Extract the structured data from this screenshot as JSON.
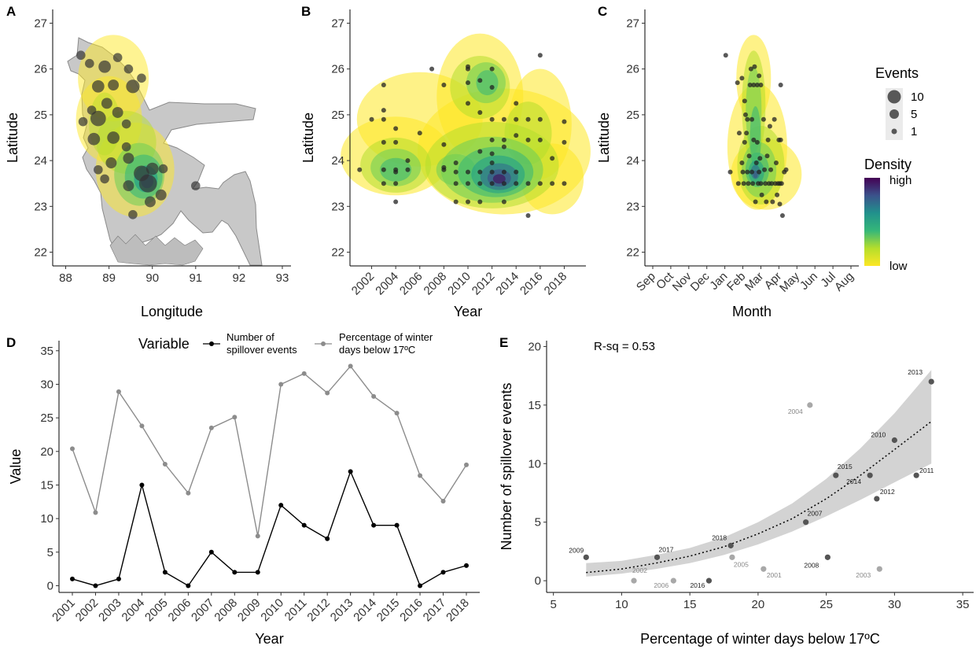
{
  "panel_labels": [
    "A",
    "B",
    "C",
    "D",
    "E"
  ],
  "legend": {
    "events_title": "Events",
    "events_levels": [
      "10",
      "5",
      "1"
    ],
    "density_title": "Density",
    "density_high": "high",
    "density_low": "low"
  },
  "colors": {
    "land": "#c8c8c8",
    "point": "#333333",
    "line_events": "#000000",
    "line_pct": "#8c8c8c",
    "ribbon": "#d3d3d3",
    "viridis": [
      "#fde725",
      "#b5de2b",
      "#6ece58",
      "#35b779",
      "#1f9e89",
      "#26828e",
      "#31688e",
      "#3e4989",
      "#482878",
      "#440154"
    ]
  },
  "chart_data": [
    {
      "panel": "A",
      "type": "scatter",
      "xlabel": "Longitude",
      "ylabel": "Latitude",
      "xlim": [
        87.7,
        93.2
      ],
      "ylim": [
        21.7,
        27.3
      ],
      "xticks": [
        "88",
        "89",
        "90",
        "91",
        "92",
        "93"
      ],
      "yticks": [
        "22",
        "23",
        "24",
        "25",
        "26",
        "27"
      ],
      "grid": false,
      "points": [
        {
          "lon": 88.35,
          "lat": 26.3,
          "events": 1
        },
        {
          "lon": 88.55,
          "lat": 26.12,
          "events": 1
        },
        {
          "lon": 88.9,
          "lat": 26.05,
          "events": 3
        },
        {
          "lon": 89.2,
          "lat": 26.25,
          "events": 1
        },
        {
          "lon": 89.45,
          "lat": 26.0,
          "events": 1
        },
        {
          "lon": 88.75,
          "lat": 25.62,
          "events": 3
        },
        {
          "lon": 89.1,
          "lat": 25.65,
          "events": 2
        },
        {
          "lon": 89.55,
          "lat": 25.62,
          "events": 4
        },
        {
          "lon": 89.75,
          "lat": 25.8,
          "events": 1
        },
        {
          "lon": 88.6,
          "lat": 25.1,
          "events": 1
        },
        {
          "lon": 88.95,
          "lat": 25.25,
          "events": 2
        },
        {
          "lon": 89.2,
          "lat": 25.05,
          "events": 2
        },
        {
          "lon": 88.75,
          "lat": 24.92,
          "events": 6
        },
        {
          "lon": 88.4,
          "lat": 24.85,
          "events": 1
        },
        {
          "lon": 89.4,
          "lat": 24.8,
          "events": 1
        },
        {
          "lon": 88.65,
          "lat": 24.47,
          "events": 3
        },
        {
          "lon": 89.1,
          "lat": 24.5,
          "events": 3
        },
        {
          "lon": 89.4,
          "lat": 24.3,
          "events": 1
        },
        {
          "lon": 88.75,
          "lat": 23.8,
          "events": 1
        },
        {
          "lon": 89.05,
          "lat": 23.95,
          "events": 2
        },
        {
          "lon": 89.45,
          "lat": 24.05,
          "events": 2
        },
        {
          "lon": 89.75,
          "lat": 23.72,
          "events": 6
        },
        {
          "lon": 90.0,
          "lat": 23.82,
          "events": 3
        },
        {
          "lon": 89.9,
          "lat": 23.5,
          "events": 9
        },
        {
          "lon": 89.45,
          "lat": 23.45,
          "events": 2
        },
        {
          "lon": 89.95,
          "lat": 23.1,
          "events": 2
        },
        {
          "lon": 90.2,
          "lat": 23.25,
          "events": 2
        },
        {
          "lon": 90.25,
          "lat": 23.82,
          "events": 1
        },
        {
          "lon": 89.55,
          "lat": 22.82,
          "events": 1
        },
        {
          "lon": 88.9,
          "lat": 23.6,
          "events": 1
        },
        {
          "lon": 91.0,
          "lat": 23.45,
          "events": 1
        }
      ]
    },
    {
      "panel": "B",
      "type": "scatter",
      "xlabel": "Year",
      "ylabel": "Latitude",
      "xlim": [
        2000.2,
        2019.8
      ],
      "ylim": [
        21.7,
        27.3
      ],
      "xticks": [
        "2002",
        "2004",
        "2006",
        "2008",
        "2010",
        "2012",
        "2014",
        "2016",
        "2018"
      ],
      "yticks": [
        "22",
        "23",
        "24",
        "25",
        "26",
        "27"
      ],
      "points": [
        [
          2001,
          23.8
        ],
        [
          2002,
          24.9
        ],
        [
          2003,
          23.8
        ],
        [
          2003,
          23.5
        ],
        [
          2003,
          24.4
        ],
        [
          2003,
          24.9
        ],
        [
          2003,
          25.1
        ],
        [
          2003,
          25.65
        ],
        [
          2004,
          23.1
        ],
        [
          2004,
          23.75
        ],
        [
          2004,
          23.8
        ],
        [
          2004,
          23.5
        ],
        [
          2004,
          24.4
        ],
        [
          2004,
          24.7
        ],
        [
          2005,
          23.8
        ],
        [
          2005,
          24.0
        ],
        [
          2006,
          24.6
        ],
        [
          2007,
          26.0
        ],
        [
          2008,
          23.85
        ],
        [
          2008,
          23.8
        ],
        [
          2008,
          24.35
        ],
        [
          2008,
          25.65
        ],
        [
          2009,
          23.1
        ],
        [
          2009,
          23.5
        ],
        [
          2009,
          23.75
        ],
        [
          2009,
          23.95
        ],
        [
          2010,
          23.1
        ],
        [
          2010,
          23.5
        ],
        [
          2010,
          23.75
        ],
        [
          2010,
          25.25
        ],
        [
          2010,
          26.05
        ],
        [
          2010,
          26.0
        ],
        [
          2010,
          25.7
        ],
        [
          2011,
          23.1
        ],
        [
          2011,
          23.5
        ],
        [
          2011,
          23.75
        ],
        [
          2011,
          24.2
        ],
        [
          2011,
          25.05
        ],
        [
          2011,
          25.75
        ],
        [
          2012,
          23.5
        ],
        [
          2012,
          23.75
        ],
        [
          2012,
          23.95
        ],
        [
          2012,
          24.15
        ],
        [
          2012,
          24.45
        ],
        [
          2012,
          24.9
        ],
        [
          2012,
          25.6
        ],
        [
          2012,
          26.0
        ],
        [
          2013,
          23.1
        ],
        [
          2013,
          23.5
        ],
        [
          2013,
          23.75
        ],
        [
          2013,
          24.3
        ],
        [
          2013,
          24.45
        ],
        [
          2013,
          24.9
        ],
        [
          2014,
          23.5
        ],
        [
          2014,
          23.75
        ],
        [
          2014,
          24.55
        ],
        [
          2014,
          24.9
        ],
        [
          2014,
          25.25
        ],
        [
          2015,
          22.8
        ],
        [
          2015,
          23.5
        ],
        [
          2015,
          24.45
        ],
        [
          2015,
          24.9
        ],
        [
          2016,
          26.3
        ],
        [
          2016,
          23.5
        ],
        [
          2016,
          24.45
        ],
        [
          2016,
          24.9
        ],
        [
          2017,
          23.5
        ],
        [
          2017,
          24.05
        ],
        [
          2018,
          23.5
        ],
        [
          2018,
          24.85
        ],
        [
          2018,
          24.4
        ]
      ]
    },
    {
      "panel": "C",
      "type": "scatter",
      "xlabel": "Month",
      "ylabel": "Latitude",
      "ylim": [
        21.7,
        27.3
      ],
      "xticks": [
        "Sep",
        "Oct",
        "Nov",
        "Dec",
        "Jan",
        "Feb",
        "Mar",
        "Apr",
        "May",
        "Jun",
        "Jul",
        "Aug"
      ],
      "yticks": [
        "22",
        "23",
        "24",
        "25",
        "26",
        "27"
      ],
      "points": [
        [
          4.05,
          26.3
        ],
        [
          4.3,
          23.75
        ],
        [
          4.7,
          25.7
        ],
        [
          4.75,
          23.5
        ],
        [
          4.8,
          24.6
        ],
        [
          4.95,
          25.8
        ],
        [
          4.95,
          23.95
        ],
        [
          5.0,
          23.75
        ],
        [
          5.05,
          23.5
        ],
        [
          5.1,
          24.4
        ],
        [
          5.1,
          25.3
        ],
        [
          5.15,
          25.0
        ],
        [
          5.2,
          24.6
        ],
        [
          5.25,
          24.9
        ],
        [
          5.25,
          23.75
        ],
        [
          5.3,
          23.5
        ],
        [
          5.35,
          24.1
        ],
        [
          5.4,
          25.65
        ],
        [
          5.45,
          26.0
        ],
        [
          5.5,
          24.9
        ],
        [
          5.5,
          23.75
        ],
        [
          5.55,
          23.5
        ],
        [
          5.6,
          24.45
        ],
        [
          5.6,
          25.65
        ],
        [
          5.65,
          26.05
        ],
        [
          5.7,
          23.1
        ],
        [
          5.75,
          23.95
        ],
        [
          5.8,
          24.4
        ],
        [
          5.8,
          25.65
        ],
        [
          5.85,
          23.5
        ],
        [
          5.9,
          25.85
        ],
        [
          5.9,
          23.75
        ],
        [
          5.95,
          24.05
        ],
        [
          6.0,
          25.65
        ],
        [
          6.0,
          23.5
        ],
        [
          6.05,
          23.25
        ],
        [
          6.15,
          24.9
        ],
        [
          6.2,
          23.8
        ],
        [
          6.25,
          23.5
        ],
        [
          6.3,
          23.1
        ],
        [
          6.35,
          24.1
        ],
        [
          6.4,
          24.45
        ],
        [
          6.45,
          23.5
        ],
        [
          6.5,
          24.75
        ],
        [
          6.55,
          23.8
        ],
        [
          6.6,
          23.5
        ],
        [
          6.65,
          23.1
        ],
        [
          6.75,
          24.9
        ],
        [
          6.8,
          23.5
        ],
        [
          6.85,
          23.95
        ],
        [
          6.9,
          23.25
        ],
        [
          6.95,
          23.5
        ],
        [
          7.0,
          24.45
        ],
        [
          7.05,
          23.5
        ],
        [
          7.1,
          25.65
        ],
        [
          7.1,
          24.45
        ],
        [
          7.15,
          23.5
        ],
        [
          7.2,
          22.8
        ],
        [
          7.3,
          23.75
        ],
        [
          7.4,
          23.8
        ],
        [
          7.05,
          23.05
        ]
      ]
    },
    {
      "panel": "D",
      "type": "line",
      "xlabel": "Year",
      "ylabel": "Value",
      "legend_title": "Variable",
      "ylim": [
        -1,
        36.5
      ],
      "yticks": [
        "0",
        "5",
        "10",
        "15",
        "20",
        "25",
        "30",
        "35"
      ],
      "categories": [
        "2001",
        "2002",
        "2003",
        "2004",
        "2005",
        "2006",
        "2007",
        "2008",
        "2009",
        "2010",
        "2011",
        "2012",
        "2013",
        "2014",
        "2015",
        "2016",
        "2017",
        "2018"
      ],
      "series": [
        {
          "name": "Number of spillover events",
          "values": [
            1,
            0,
            1,
            15,
            2,
            0,
            5,
            2,
            2,
            12,
            9,
            7,
            17,
            9,
            9,
            0,
            2,
            3
          ]
        },
        {
          "name": "Percentage of winter days below 17ºC",
          "values": [
            20.4,
            10.9,
            28.9,
            23.8,
            18.1,
            13.8,
            23.5,
            25.1,
            7.4,
            30.0,
            31.6,
            28.7,
            32.7,
            28.2,
            25.7,
            16.4,
            12.6,
            18.0
          ]
        }
      ]
    },
    {
      "panel": "E",
      "type": "scatter",
      "xlabel": "Percentage of winter days below 17ºC",
      "ylabel": "Number of spillover events",
      "xlim": [
        4.5,
        35.8
      ],
      "ylim": [
        -1,
        20.5
      ],
      "xticks": [
        "5",
        "10",
        "15",
        "20",
        "25",
        "30",
        "35"
      ],
      "yticks": [
        "0",
        "5",
        "10",
        "15",
        "20"
      ],
      "annotation": "R-sq = 0.53",
      "points": [
        {
          "label": "2009",
          "x": 7.4,
          "y": 2
        },
        {
          "label": "2002",
          "x": 10.9,
          "y": 0
        },
        {
          "label": "2017",
          "x": 12.6,
          "y": 2
        },
        {
          "label": "2006",
          "x": 13.8,
          "y": 0
        },
        {
          "label": "2016",
          "x": 16.4,
          "y": 0
        },
        {
          "label": "2018",
          "x": 18.0,
          "y": 3
        },
        {
          "label": "2005",
          "x": 18.1,
          "y": 2
        },
        {
          "label": "2001",
          "x": 20.4,
          "y": 1
        },
        {
          "label": "2007",
          "x": 23.5,
          "y": 5
        },
        {
          "label": "2004",
          "x": 23.8,
          "y": 15
        },
        {
          "label": "2008",
          "x": 25.1,
          "y": 2
        },
        {
          "label": "2015",
          "x": 25.7,
          "y": 9
        },
        {
          "label": "2014",
          "x": 28.2,
          "y": 9
        },
        {
          "label": "2012",
          "x": 28.7,
          "y": 7
        },
        {
          "label": "2003",
          "x": 28.9,
          "y": 1
        },
        {
          "label": "2010",
          "x": 30.0,
          "y": 12
        },
        {
          "label": "2011",
          "x": 31.6,
          "y": 9
        },
        {
          "label": "2013",
          "x": 32.7,
          "y": 17
        }
      ],
      "fit": {
        "type": "exponential",
        "x": [
          7.4,
          10,
          12.5,
          15,
          17.5,
          20,
          22.5,
          25,
          27.5,
          30,
          32.7
        ],
        "y": [
          0.7,
          1.0,
          1.5,
          2.1,
          2.9,
          4.0,
          5.3,
          7.0,
          9.0,
          11.2,
          13.6
        ],
        "lower": [
          0.35,
          0.6,
          1.0,
          1.5,
          2.2,
          3.1,
          4.2,
          5.5,
          6.9,
          8.4,
          10.0
        ],
        "upper": [
          1.5,
          1.7,
          2.2,
          2.8,
          3.7,
          5.0,
          6.6,
          8.7,
          11.3,
          14.3,
          18.0
        ]
      }
    }
  ]
}
